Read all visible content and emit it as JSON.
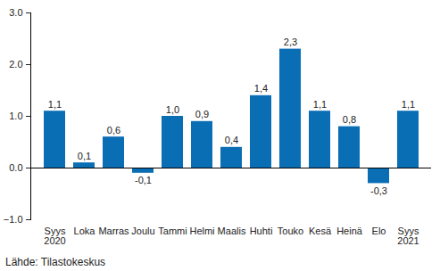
{
  "chart_data": {
    "type": "bar",
    "caption": "Lähde: Tilastokeskus",
    "categories": [
      "Syys\n2020",
      "Loka",
      "Marras",
      "Joulu",
      "Tammi",
      "Helmi",
      "Maalis",
      "Huhti",
      "Touko",
      "Kesä",
      "Heinä",
      "Elo",
      "Syys\n2021"
    ],
    "values": [
      1.1,
      0.1,
      0.6,
      -0.1,
      1.0,
      0.9,
      0.4,
      1.4,
      2.3,
      1.1,
      0.8,
      -0.3,
      1.1
    ],
    "value_labels": [
      "1,1",
      "0,1",
      "0,6",
      "-0,1",
      "1,0",
      "0,9",
      "0,4",
      "1,4",
      "2,3",
      "1,1",
      "0,8",
      "-0,3",
      "1,1"
    ],
    "data_labels": true,
    "color": "#0a6eb4",
    "ylim": [
      -1,
      3
    ],
    "yticks": [
      -1,
      0,
      1,
      2,
      3
    ],
    "grid": false
  }
}
